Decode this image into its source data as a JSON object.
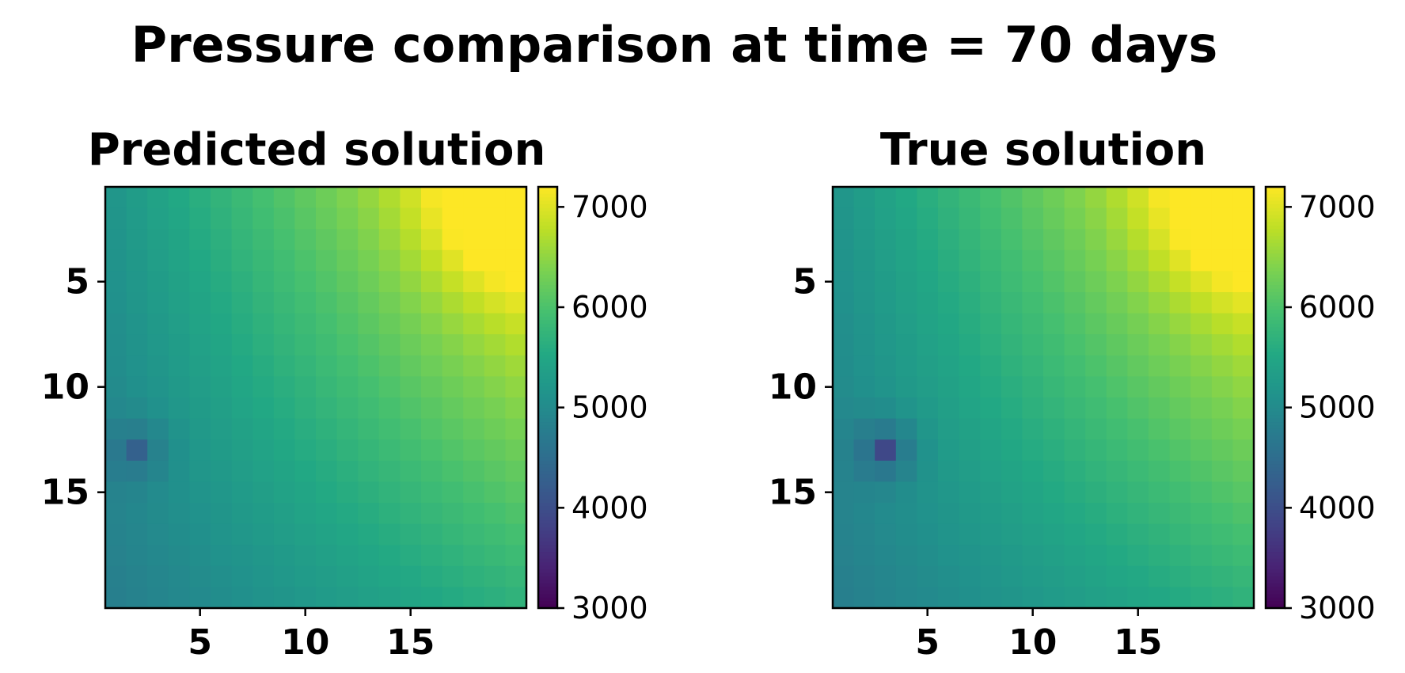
{
  "title": "Pressure comparison at time = 70 days",
  "chart_data": [
    {
      "type": "heatmap",
      "title": "Predicted solution",
      "grid_size": [
        20,
        20
      ],
      "x_ticks": [
        5,
        10,
        15
      ],
      "y_ticks": [
        5,
        10,
        15
      ],
      "colormap": "viridis",
      "clim": [
        3000,
        7200
      ],
      "colorbar_ticks": [
        3000,
        4000,
        5000,
        6000,
        7000
      ],
      "field_description_values": {
        "corner_top_left": 5200,
        "corner_top_right": 7200,
        "corner_bottom_left": 4800,
        "corner_bottom_right": 5700,
        "well_minimum": {
          "row": 13,
          "col": 2,
          "value": 4300
        }
      }
    },
    {
      "type": "heatmap",
      "title": "True solution",
      "grid_size": [
        20,
        20
      ],
      "x_ticks": [
        5,
        10,
        15
      ],
      "y_ticks": [
        5,
        10,
        15
      ],
      "colormap": "viridis",
      "clim": [
        3000,
        7200
      ],
      "colorbar_ticks": [
        3000,
        4000,
        5000,
        6000,
        7000
      ],
      "field_description_values": {
        "corner_top_left": 5200,
        "corner_top_right": 7200,
        "corner_bottom_left": 4800,
        "corner_bottom_right": 5700,
        "well_minimum": {
          "row": 13,
          "col": 3,
          "value": 3900
        }
      }
    }
  ]
}
